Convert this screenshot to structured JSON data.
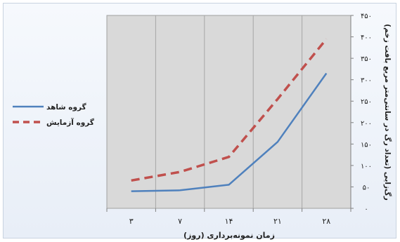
{
  "chart_data": {
    "type": "line",
    "categories": [
      "۳",
      "۷",
      "۱۴",
      "۲۱",
      "۲۸"
    ],
    "series": [
      {
        "name": "گروه شاهد",
        "values": [
          40,
          42,
          55,
          155,
          315
        ],
        "color": "#4f81bd",
        "dashed": false
      },
      {
        "name": "گروه آزمایش",
        "values": [
          65,
          85,
          120,
          255,
          395
        ],
        "color": "#c0504d",
        "dashed": true
      }
    ],
    "xlabel": "زمان نمونه‌برداری (روز)",
    "ylabel": "رگ‌زایی (تعداد رگ در سانتی‌متر مربع بافت زخم)",
    "ylim": [
      0,
      450
    ],
    "yticks": [
      {
        "v": 0,
        "label": "۰"
      },
      {
        "v": 50,
        "label": "۵۰"
      },
      {
        "v": 100,
        "label": "۱۰۰"
      },
      {
        "v": 150,
        "label": "۱۵۰"
      },
      {
        "v": 200,
        "label": "۲۰۰"
      },
      {
        "v": 250,
        "label": "۲۵۰"
      },
      {
        "v": 300,
        "label": "۳۰۰"
      },
      {
        "v": 350,
        "label": "۳۵۰"
      },
      {
        "v": 400,
        "label": "۴۰۰"
      },
      {
        "v": 450,
        "label": "۴۵۰"
      }
    ],
    "grid": "vertical",
    "legend_position": "left"
  }
}
